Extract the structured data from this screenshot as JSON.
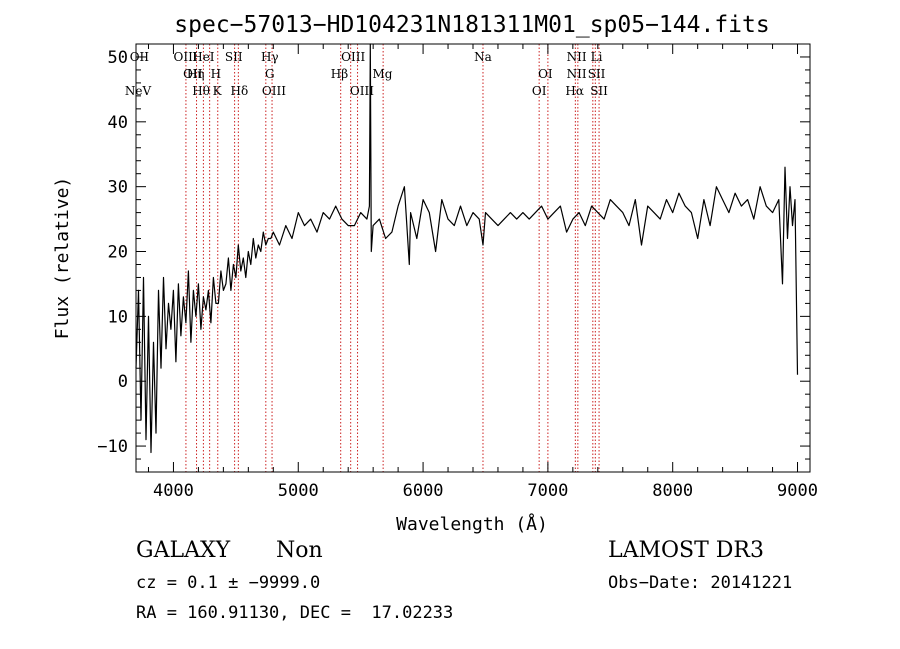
{
  "chart_data": {
    "type": "line",
    "title": "spec−57013−HD104231N181311M01_sp05−144.fits",
    "xlabel": "Wavelength (Å)",
    "ylabel": "Flux (relative)",
    "xlim": [
      3700,
      9100
    ],
    "ylim": [
      -14,
      52
    ],
    "xticks": [
      4000,
      5000,
      6000,
      7000,
      8000,
      9000
    ],
    "yticks": [
      -10,
      0,
      10,
      20,
      30,
      40,
      50
    ],
    "xtick_labels": [
      "4000",
      "5000",
      "6000",
      "7000",
      "8000",
      "9000"
    ],
    "ytick_labels": [
      "−10",
      "0",
      "10",
      "20",
      "30",
      "40",
      "50"
    ],
    "grid": false,
    "line_color": "#000000",
    "marker_color": "#cc2222",
    "spectrum": {
      "x": [
        3700,
        3720,
        3740,
        3760,
        3780,
        3800,
        3820,
        3840,
        3860,
        3880,
        3900,
        3920,
        3940,
        3960,
        3980,
        4000,
        4020,
        4040,
        4060,
        4080,
        4100,
        4120,
        4140,
        4160,
        4180,
        4200,
        4220,
        4240,
        4260,
        4280,
        4300,
        4320,
        4340,
        4360,
        4380,
        4400,
        4420,
        4440,
        4460,
        4480,
        4500,
        4520,
        4540,
        4560,
        4580,
        4600,
        4620,
        4640,
        4660,
        4680,
        4700,
        4720,
        4740,
        4760,
        4780,
        4800,
        4850,
        4900,
        4950,
        5000,
        5050,
        5100,
        5150,
        5200,
        5250,
        5300,
        5350,
        5400,
        5450,
        5500,
        5550,
        5570,
        5577,
        5585,
        5600,
        5650,
        5700,
        5750,
        5800,
        5850,
        5890,
        5900,
        5950,
        6000,
        6050,
        6100,
        6150,
        6200,
        6250,
        6300,
        6350,
        6400,
        6450,
        6480,
        6500,
        6550,
        6600,
        6650,
        6700,
        6750,
        6800,
        6850,
        6900,
        6950,
        7000,
        7050,
        7100,
        7150,
        7200,
        7250,
        7300,
        7350,
        7400,
        7450,
        7500,
        7550,
        7600,
        7650,
        7700,
        7750,
        7800,
        7850,
        7900,
        7950,
        8000,
        8050,
        8100,
        8150,
        8200,
        8250,
        8300,
        8350,
        8400,
        8450,
        8500,
        8550,
        8600,
        8650,
        8700,
        8750,
        8800,
        8850,
        8880,
        8900,
        8920,
        8940,
        8960,
        8980,
        9000
      ],
      "y": [
        2,
        14,
        -6,
        16,
        -9,
        10,
        -11,
        6,
        -8,
        14,
        2,
        16,
        5,
        12,
        8,
        14,
        3,
        15,
        7,
        13,
        9,
        17,
        6,
        14,
        10,
        15,
        8,
        13,
        11,
        14,
        9,
        16,
        12,
        12,
        17,
        14,
        15,
        19,
        14,
        18,
        16,
        21,
        17,
        19,
        16,
        20,
        18,
        22,
        19,
        21,
        20,
        23,
        21,
        22,
        22,
        23,
        21,
        24,
        22,
        26,
        24,
        25,
        23,
        26,
        25,
        27,
        25,
        24,
        24,
        26,
        25,
        27,
        52,
        20,
        24,
        25,
        22,
        23,
        27,
        30,
        18,
        26,
        22,
        28,
        26,
        20,
        28,
        25,
        24,
        27,
        24,
        26,
        25,
        21,
        26,
        25,
        24,
        25,
        26,
        25,
        26,
        25,
        26,
        27,
        25,
        26,
        27,
        23,
        25,
        26,
        24,
        27,
        26,
        25,
        28,
        27,
        26,
        24,
        28,
        21,
        27,
        26,
        25,
        28,
        26,
        29,
        27,
        26,
        22,
        28,
        24,
        30,
        28,
        26,
        29,
        27,
        28,
        25,
        30,
        27,
        26,
        28,
        15,
        33,
        22,
        30,
        24,
        28,
        1
      ]
    },
    "lines": [
      {
        "label": "NeV",
        "x": 3426,
        "row": 3
      },
      {
        "label": "OII",
        "x": 3727,
        "row": 1
      },
      {
        "label": "OIII",
        "x": 4097,
        "row": 1
      },
      {
        "label": "OII",
        "x": 4155,
        "row": 2
      },
      {
        "label": "Hη",
        "x": 4178,
        "row": 2
      },
      {
        "label": "Hθ",
        "x": 4222,
        "row": 3
      },
      {
        "label": "HeI",
        "x": 4240,
        "row": 1
      },
      {
        "label": "H",
        "x": 4340,
        "row": 2
      },
      {
        "label": "K",
        "x": 4350,
        "row": 3
      },
      {
        "label": "SII",
        "x": 4483,
        "row": 1
      },
      {
        "label": "Hδ",
        "x": 4528,
        "row": 3
      },
      {
        "label": "Hγ",
        "x": 4772,
        "row": 1
      },
      {
        "label": "G",
        "x": 4772,
        "row": 2
      },
      {
        "label": "OIII",
        "x": 4805,
        "row": 3
      },
      {
        "label": "Hβ",
        "x": 5330,
        "row": 2
      },
      {
        "label": "OIII",
        "x": 5440,
        "row": 1
      },
      {
        "label": "OIII",
        "x": 5510,
        "row": 3
      },
      {
        "label": "Mg",
        "x": 5675,
        "row": 2
      },
      {
        "label": "Na",
        "x": 6480,
        "row": 1
      },
      {
        "label": "OI",
        "x": 6980,
        "row": 2
      },
      {
        "label": "OI",
        "x": 6930,
        "row": 3
      },
      {
        "label": "NII",
        "x": 7230,
        "row": 1
      },
      {
        "label": "NII",
        "x": 7230,
        "row": 2
      },
      {
        "label": "Hα",
        "x": 7215,
        "row": 3
      },
      {
        "label": "Li",
        "x": 7390,
        "row": 1
      },
      {
        "label": "SII",
        "x": 7390,
        "row": 2
      },
      {
        "label": "SII",
        "x": 7410,
        "row": 3
      }
    ],
    "line_markers_x": [
      4100,
      4185,
      4240,
      4290,
      4355,
      4490,
      4520,
      4740,
      4790,
      5340,
      5420,
      5475,
      5680,
      6480,
      6930,
      7000,
      7220,
      7240,
      7360,
      7380,
      7410
    ]
  },
  "footer": {
    "object_class": "GALAXY",
    "subclass": "Non",
    "survey": "LAMOST DR3",
    "redshift": "cz = 0.1 ± −9999.0",
    "obs_date": "Obs−Date: 20141221",
    "coords": "RA = 160.91130, DEC =  17.02233"
  }
}
